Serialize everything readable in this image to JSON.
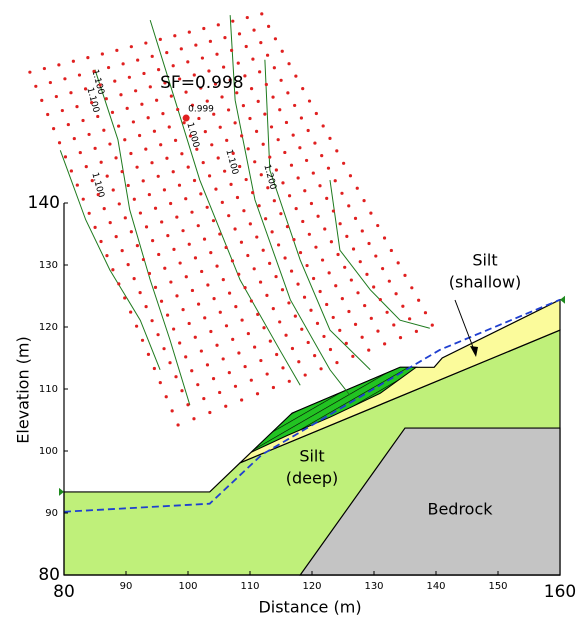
{
  "chart_data": {
    "type": "slope-section",
    "xlabel": "Distance (m)",
    "ylabel": "Elevation (m)",
    "xlim": [
      80,
      160
    ],
    "ylim": [
      80,
      140
    ],
    "xticks": [
      80,
      90,
      100,
      110,
      120,
      130,
      140,
      150,
      160
    ],
    "yticks": [
      80,
      90,
      100,
      110,
      120,
      130,
      140
    ],
    "regions": [
      {
        "label": [
          "Silt",
          "(deep)"
        ],
        "color": "#bff07a",
        "points": [
          [
            80,
            80
          ],
          [
            80,
            93.4
          ],
          [
            103.5,
            93.4
          ],
          [
            108.4,
            98.1
          ],
          [
            160,
            119.5
          ],
          [
            160,
            80
          ]
        ]
      },
      {
        "label": [
          "Silt",
          "(shallow)"
        ],
        "color": "#fbfb9b",
        "points": [
          [
            108.4,
            98.1
          ],
          [
            116.8,
            106.1
          ],
          [
            134.2,
            113.5
          ],
          [
            139.7,
            113.5
          ],
          [
            141,
            115
          ],
          [
            160,
            124.4
          ],
          [
            160,
            119.5
          ]
        ]
      },
      {
        "label": [
          "Bedrock"
        ],
        "color": "#c4c4c4",
        "points": [
          [
            118.1,
            80
          ],
          [
            135,
            103.7
          ],
          [
            160,
            103.7
          ],
          [
            160,
            80
          ]
        ]
      }
    ],
    "slip_mass": {
      "color": "#22c322",
      "points": [
        [
          110.2,
          99.8
        ],
        [
          116.8,
          106.1
        ],
        [
          134.2,
          113.5
        ],
        [
          136.8,
          113.5
        ],
        [
          131,
          109.3
        ],
        [
          123,
          105.5
        ],
        [
          116,
          102.5
        ]
      ]
    },
    "piezometric_line": {
      "color": "#1f3fd0",
      "points": [
        [
          80,
          90.2
        ],
        [
          103.5,
          91.5
        ],
        [
          111.9,
          99.4
        ],
        [
          140.6,
          116.3
        ],
        [
          160,
          124.4
        ]
      ]
    },
    "grid": {
      "color": "#e02020",
      "corners": [
        [
          74.5,
          161.1
        ],
        [
          111.9,
          170.5
        ],
        [
          139.4,
          120.3
        ],
        [
          98.4,
          104.2
        ]
      ],
      "columns": 17,
      "rows": 26
    },
    "contours": {
      "color": "#1e7a1e",
      "lines": [
        [
          [
            85.0,
            161.5
          ],
          [
            88.7,
            150.2
          ],
          [
            90.6,
            138.9
          ],
          [
            93.9,
            127.6
          ],
          [
            97.1,
            117.9
          ],
          [
            100.3,
            107.4
          ]
        ],
        [
          [
            93.9,
            169.5
          ],
          [
            97.9,
            156.6
          ],
          [
            101.9,
            143.7
          ],
          [
            108.4,
            127.6
          ],
          [
            114.8,
            116.3
          ],
          [
            118.1,
            110.6
          ]
        ],
        [
          [
            106.8,
            170.3
          ],
          [
            107.6,
            156.6
          ],
          [
            110.8,
            140.5
          ],
          [
            116.5,
            124.4
          ],
          [
            122.9,
            113.1
          ],
          [
            126.1,
            109.0
          ]
        ],
        [
          [
            112.4,
            163.1
          ],
          [
            113.2,
            145.3
          ],
          [
            118.1,
            130.8
          ],
          [
            122.9,
            119.5
          ],
          [
            129.4,
            113.1
          ]
        ],
        [
          [
            79.4,
            148.5
          ],
          [
            83.5,
            137.3
          ],
          [
            87.4,
            129.2
          ],
          [
            92.3,
            121.1
          ],
          [
            95.5,
            113.1
          ]
        ],
        [
          [
            122.9,
            143.7
          ],
          [
            124.5,
            132.4
          ],
          [
            129.4,
            126.0
          ],
          [
            134.2,
            121.1
          ],
          [
            139.0,
            119.8
          ]
        ]
      ],
      "labels": [
        "1.100",
        "1.100",
        "1.000",
        "1.100",
        "1.100",
        "1.200"
      ]
    },
    "critical_center": [
      99.7,
      153.7
    ],
    "center_label": "0.999",
    "factor_of_safety_label": "SF=0.998"
  }
}
